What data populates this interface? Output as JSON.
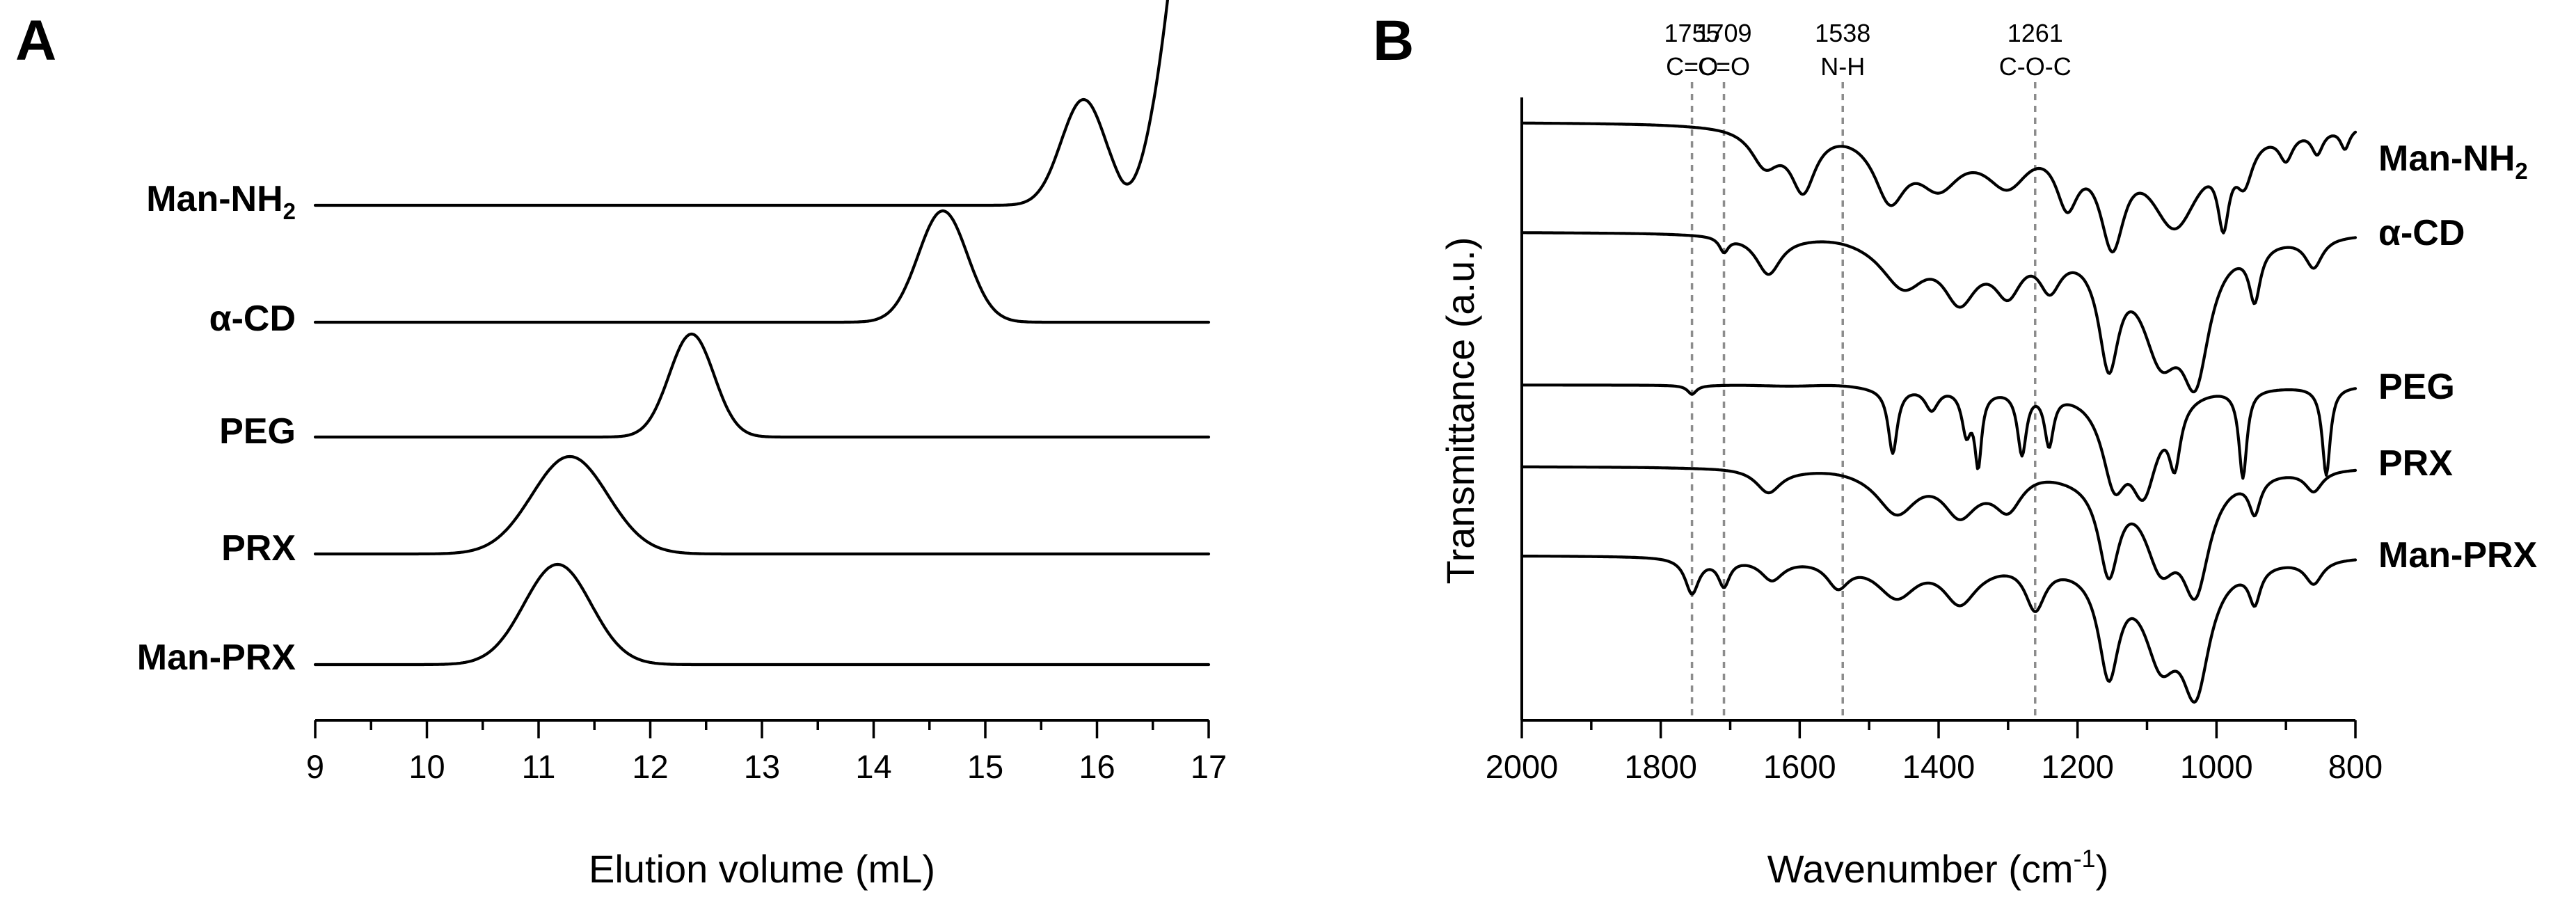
{
  "chart_data": [
    {
      "panel": "A",
      "type": "line",
      "title": "",
      "xlabel": "Elution volume (mL)",
      "ylabel": "",
      "xlim": [
        9,
        17
      ],
      "xticks": [
        "9",
        "10",
        "11",
        "12",
        "13",
        "14",
        "15",
        "16",
        "17"
      ],
      "stacked_offset": true,
      "series": [
        {
          "name": "Man-NH",
          "name_sub": "2",
          "x_start": 9.0,
          "x_end": 16.65,
          "peaks": [
            {
              "x": 15.88,
              "height": 1.9,
              "width": 0.2
            }
          ],
          "rises_at_end": true
        },
        {
          "name": "α-CD",
          "x_start": 9.0,
          "x_end": 17.0,
          "peaks": [
            {
              "x": 14.62,
              "height": 2.0,
              "width": 0.22
            }
          ]
        },
        {
          "name": "PEG",
          "x_start": 9.0,
          "x_end": 17.0,
          "peaks": [
            {
              "x": 12.37,
              "height": 1.85,
              "width": 0.2
            }
          ]
        },
        {
          "name": "PRX",
          "x_start": 9.0,
          "x_end": 17.0,
          "peaks": [
            {
              "x": 11.28,
              "height": 1.75,
              "width": 0.34
            }
          ]
        },
        {
          "name": "Man-PRX",
          "x_start": 9.0,
          "x_end": 17.0,
          "peaks": [
            {
              "x": 11.17,
              "height": 1.8,
              "width": 0.3
            }
          ]
        }
      ]
    },
    {
      "panel": "B",
      "type": "line",
      "title": "",
      "xlabel": "Wavenumber (cm",
      "xlabel_sup": "-1",
      "xlabel_end": ")",
      "ylabel": "Transmittance (a.u.)",
      "xlim": [
        2000,
        800
      ],
      "xticks": [
        "2000",
        "1800",
        "1600",
        "1400",
        "1200",
        "1000",
        "800"
      ],
      "stacked_offset": true,
      "reference_lines": [
        {
          "x": 1755,
          "wavenumber": "1755",
          "assignment": "C=O"
        },
        {
          "x": 1709,
          "wavenumber": "1709",
          "assignment": "C=O"
        },
        {
          "x": 1538,
          "wavenumber": "1538",
          "assignment": "N-H"
        },
        {
          "x": 1261,
          "wavenumber": "1261",
          "assignment": "C-O-C"
        }
      ],
      "series": [
        {
          "name": "Man-NH",
          "name_sub": "2",
          "bands": [
            {
              "x": 1650,
              "d": 0.6,
              "w": 25
            },
            {
              "x": 1595,
              "d": 1.0,
              "w": 22
            },
            {
              "x": 1470,
              "d": 1.05,
              "w": 28
            },
            {
              "x": 1400,
              "d": 0.9,
              "w": 40
            },
            {
              "x": 1300,
              "d": 0.85,
              "w": 40
            },
            {
              "x": 1215,
              "d": 1.0,
              "w": 20
            },
            {
              "x": 1150,
              "d": 1.7,
              "w": 22
            },
            {
              "x": 1060,
              "d": 1.6,
              "w": 45
            },
            {
              "x": 990,
              "d": 1.2,
              "w": 10
            },
            {
              "x": 960,
              "d": 0.7,
              "w": 15
            },
            {
              "x": 900,
              "d": 0.45,
              "w": 12
            },
            {
              "x": 855,
              "d": 0.4,
              "w": 10
            },
            {
              "x": 815,
              "d": 0.35,
              "w": 8
            }
          ]
        },
        {
          "name": "α-CD",
          "bands": [
            {
              "x": 1709,
              "d": 0.25,
              "w": 8
            },
            {
              "x": 1645,
              "d": 0.65,
              "w": 22
            },
            {
              "x": 1450,
              "d": 0.8,
              "w": 40
            },
            {
              "x": 1370,
              "d": 0.95,
              "w": 30
            },
            {
              "x": 1300,
              "d": 0.8,
              "w": 25
            },
            {
              "x": 1240,
              "d": 0.7,
              "w": 20
            },
            {
              "x": 1155,
              "d": 1.9,
              "w": 18
            },
            {
              "x": 1080,
              "d": 1.8,
              "w": 35
            },
            {
              "x": 1030,
              "d": 2.0,
              "w": 25
            },
            {
              "x": 945,
              "d": 0.9,
              "w": 10
            },
            {
              "x": 860,
              "d": 0.5,
              "w": 15
            }
          ]
        },
        {
          "name": "PEG",
          "bands": [
            {
              "x": 1755,
              "d": 0.15,
              "w": 8
            },
            {
              "x": 1466,
              "d": 1.1,
              "w": 8
            },
            {
              "x": 1410,
              "d": 0.4,
              "w": 12
            },
            {
              "x": 1360,
              "d": 0.7,
              "w": 8
            },
            {
              "x": 1343,
              "d": 1.2,
              "w": 6
            },
            {
              "x": 1280,
              "d": 1.1,
              "w": 8
            },
            {
              "x": 1241,
              "d": 0.9,
              "w": 8
            },
            {
              "x": 1147,
              "d": 1.4,
              "w": 22
            },
            {
              "x": 1105,
              "d": 1.6,
              "w": 25
            },
            {
              "x": 1060,
              "d": 1.0,
              "w": 10
            },
            {
              "x": 962,
              "d": 1.5,
              "w": 7
            },
            {
              "x": 842,
              "d": 1.5,
              "w": 7
            }
          ]
        },
        {
          "name": "PRX",
          "bands": [
            {
              "x": 1645,
              "d": 0.4,
              "w": 22
            },
            {
              "x": 1460,
              "d": 0.7,
              "w": 35
            },
            {
              "x": 1370,
              "d": 0.7,
              "w": 30
            },
            {
              "x": 1300,
              "d": 0.6,
              "w": 25
            },
            {
              "x": 1155,
              "d": 1.6,
              "w": 18
            },
            {
              "x": 1080,
              "d": 1.4,
              "w": 30
            },
            {
              "x": 1030,
              "d": 1.8,
              "w": 25
            },
            {
              "x": 945,
              "d": 0.6,
              "w": 10
            },
            {
              "x": 860,
              "d": 0.35,
              "w": 15
            }
          ]
        },
        {
          "name": "Man-PRX",
          "bands": [
            {
              "x": 1755,
              "d": 0.6,
              "w": 12
            },
            {
              "x": 1709,
              "d": 0.45,
              "w": 10
            },
            {
              "x": 1640,
              "d": 0.35,
              "w": 20
            },
            {
              "x": 1545,
              "d": 0.45,
              "w": 20
            },
            {
              "x": 1460,
              "d": 0.6,
              "w": 35
            },
            {
              "x": 1370,
              "d": 0.7,
              "w": 30
            },
            {
              "x": 1261,
              "d": 0.8,
              "w": 18
            },
            {
              "x": 1155,
              "d": 1.8,
              "w": 18
            },
            {
              "x": 1080,
              "d": 1.5,
              "w": 30
            },
            {
              "x": 1030,
              "d": 2.0,
              "w": 25
            },
            {
              "x": 945,
              "d": 0.6,
              "w": 10
            },
            {
              "x": 860,
              "d": 0.4,
              "w": 15
            }
          ]
        }
      ]
    }
  ]
}
